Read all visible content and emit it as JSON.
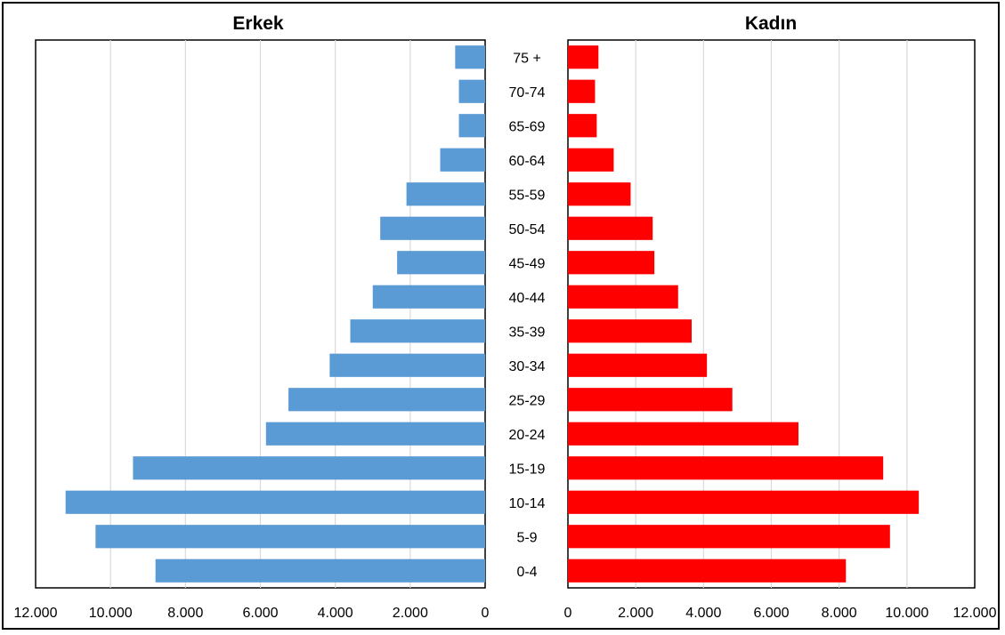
{
  "chart_data": [
    {
      "type": "bar",
      "orientation": "horizontal",
      "direction": "reversed",
      "title": "Erkek",
      "categories": [
        "0-4",
        "5-9",
        "10-14",
        "15-19",
        "20-24",
        "25-29",
        "30-34",
        "35-39",
        "40-44",
        "45-49",
        "50-54",
        "55-59",
        "60-64",
        "65-69",
        "70-74",
        "75 +"
      ],
      "values": [
        8800,
        10400,
        11200,
        9400,
        5850,
        5250,
        4150,
        3600,
        3000,
        2350,
        2800,
        2100,
        1200,
        700,
        700,
        800
      ],
      "xlim": [
        0,
        12000
      ],
      "xticks": [
        "0",
        "2.000",
        "4.000",
        "6.000",
        "8.000",
        "10.000",
        "12.000"
      ],
      "grid": true,
      "color": "#5b9bd5"
    },
    {
      "type": "bar",
      "orientation": "horizontal",
      "title": "Kadın",
      "categories": [
        "0-4",
        "5-9",
        "10-14",
        "15-19",
        "20-24",
        "25-29",
        "30-34",
        "35-39",
        "40-44",
        "45-49",
        "50-54",
        "55-59",
        "60-64",
        "65-69",
        "70-74",
        "75 +"
      ],
      "values": [
        8200,
        9500,
        10350,
        9300,
        6800,
        4850,
        4100,
        3650,
        3250,
        2550,
        2500,
        1850,
        1350,
        850,
        800,
        900
      ],
      "xlim": [
        0,
        12000
      ],
      "xticks": [
        "0",
        "2.000",
        "4.000",
        "6.000",
        "8.000",
        "10.000",
        "12.000"
      ],
      "grid": true,
      "color": "#ff0000"
    }
  ]
}
